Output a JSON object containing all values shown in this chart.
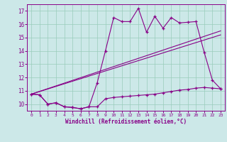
{
  "xlabel": "Windchill (Refroidissement éolien,°C)",
  "background_color": "#cce8e8",
  "line_color": "#880088",
  "xlim": [
    -0.5,
    23.5
  ],
  "ylim": [
    9.5,
    17.5
  ],
  "yticks": [
    10,
    11,
    12,
    13,
    14,
    15,
    16,
    17
  ],
  "xticks": [
    0,
    1,
    2,
    3,
    4,
    5,
    6,
    7,
    8,
    9,
    10,
    11,
    12,
    13,
    14,
    15,
    16,
    17,
    18,
    19,
    20,
    21,
    22,
    23
  ],
  "curve_upper_x": [
    0,
    1,
    2,
    3,
    4,
    5,
    6,
    7,
    8,
    9,
    10,
    11,
    12,
    13,
    14,
    15,
    16,
    17,
    18,
    19,
    20,
    21,
    22,
    23
  ],
  "curve_upper_y": [
    10.75,
    10.7,
    10.0,
    10.1,
    9.8,
    9.75,
    9.65,
    9.8,
    11.6,
    14.0,
    16.5,
    16.2,
    16.2,
    17.2,
    15.4,
    16.6,
    15.7,
    16.5,
    16.1,
    16.15,
    16.2,
    13.9,
    11.8,
    11.15
  ],
  "curve_lower_x": [
    0,
    1,
    2,
    3,
    4,
    5,
    6,
    7,
    8,
    9,
    10,
    11,
    12,
    13,
    14,
    15,
    16,
    17,
    18,
    19,
    20,
    21,
    22,
    23
  ],
  "curve_lower_y": [
    10.75,
    10.7,
    10.0,
    10.1,
    9.8,
    9.75,
    9.65,
    9.8,
    9.8,
    10.4,
    10.5,
    10.55,
    10.6,
    10.65,
    10.7,
    10.75,
    10.85,
    10.95,
    11.05,
    11.1,
    11.2,
    11.25,
    11.2,
    11.15
  ],
  "trend1_x": [
    0,
    23
  ],
  "trend1_y": [
    10.75,
    15.5
  ],
  "trend2_x": [
    0,
    23
  ],
  "trend2_y": [
    10.75,
    15.2
  ]
}
